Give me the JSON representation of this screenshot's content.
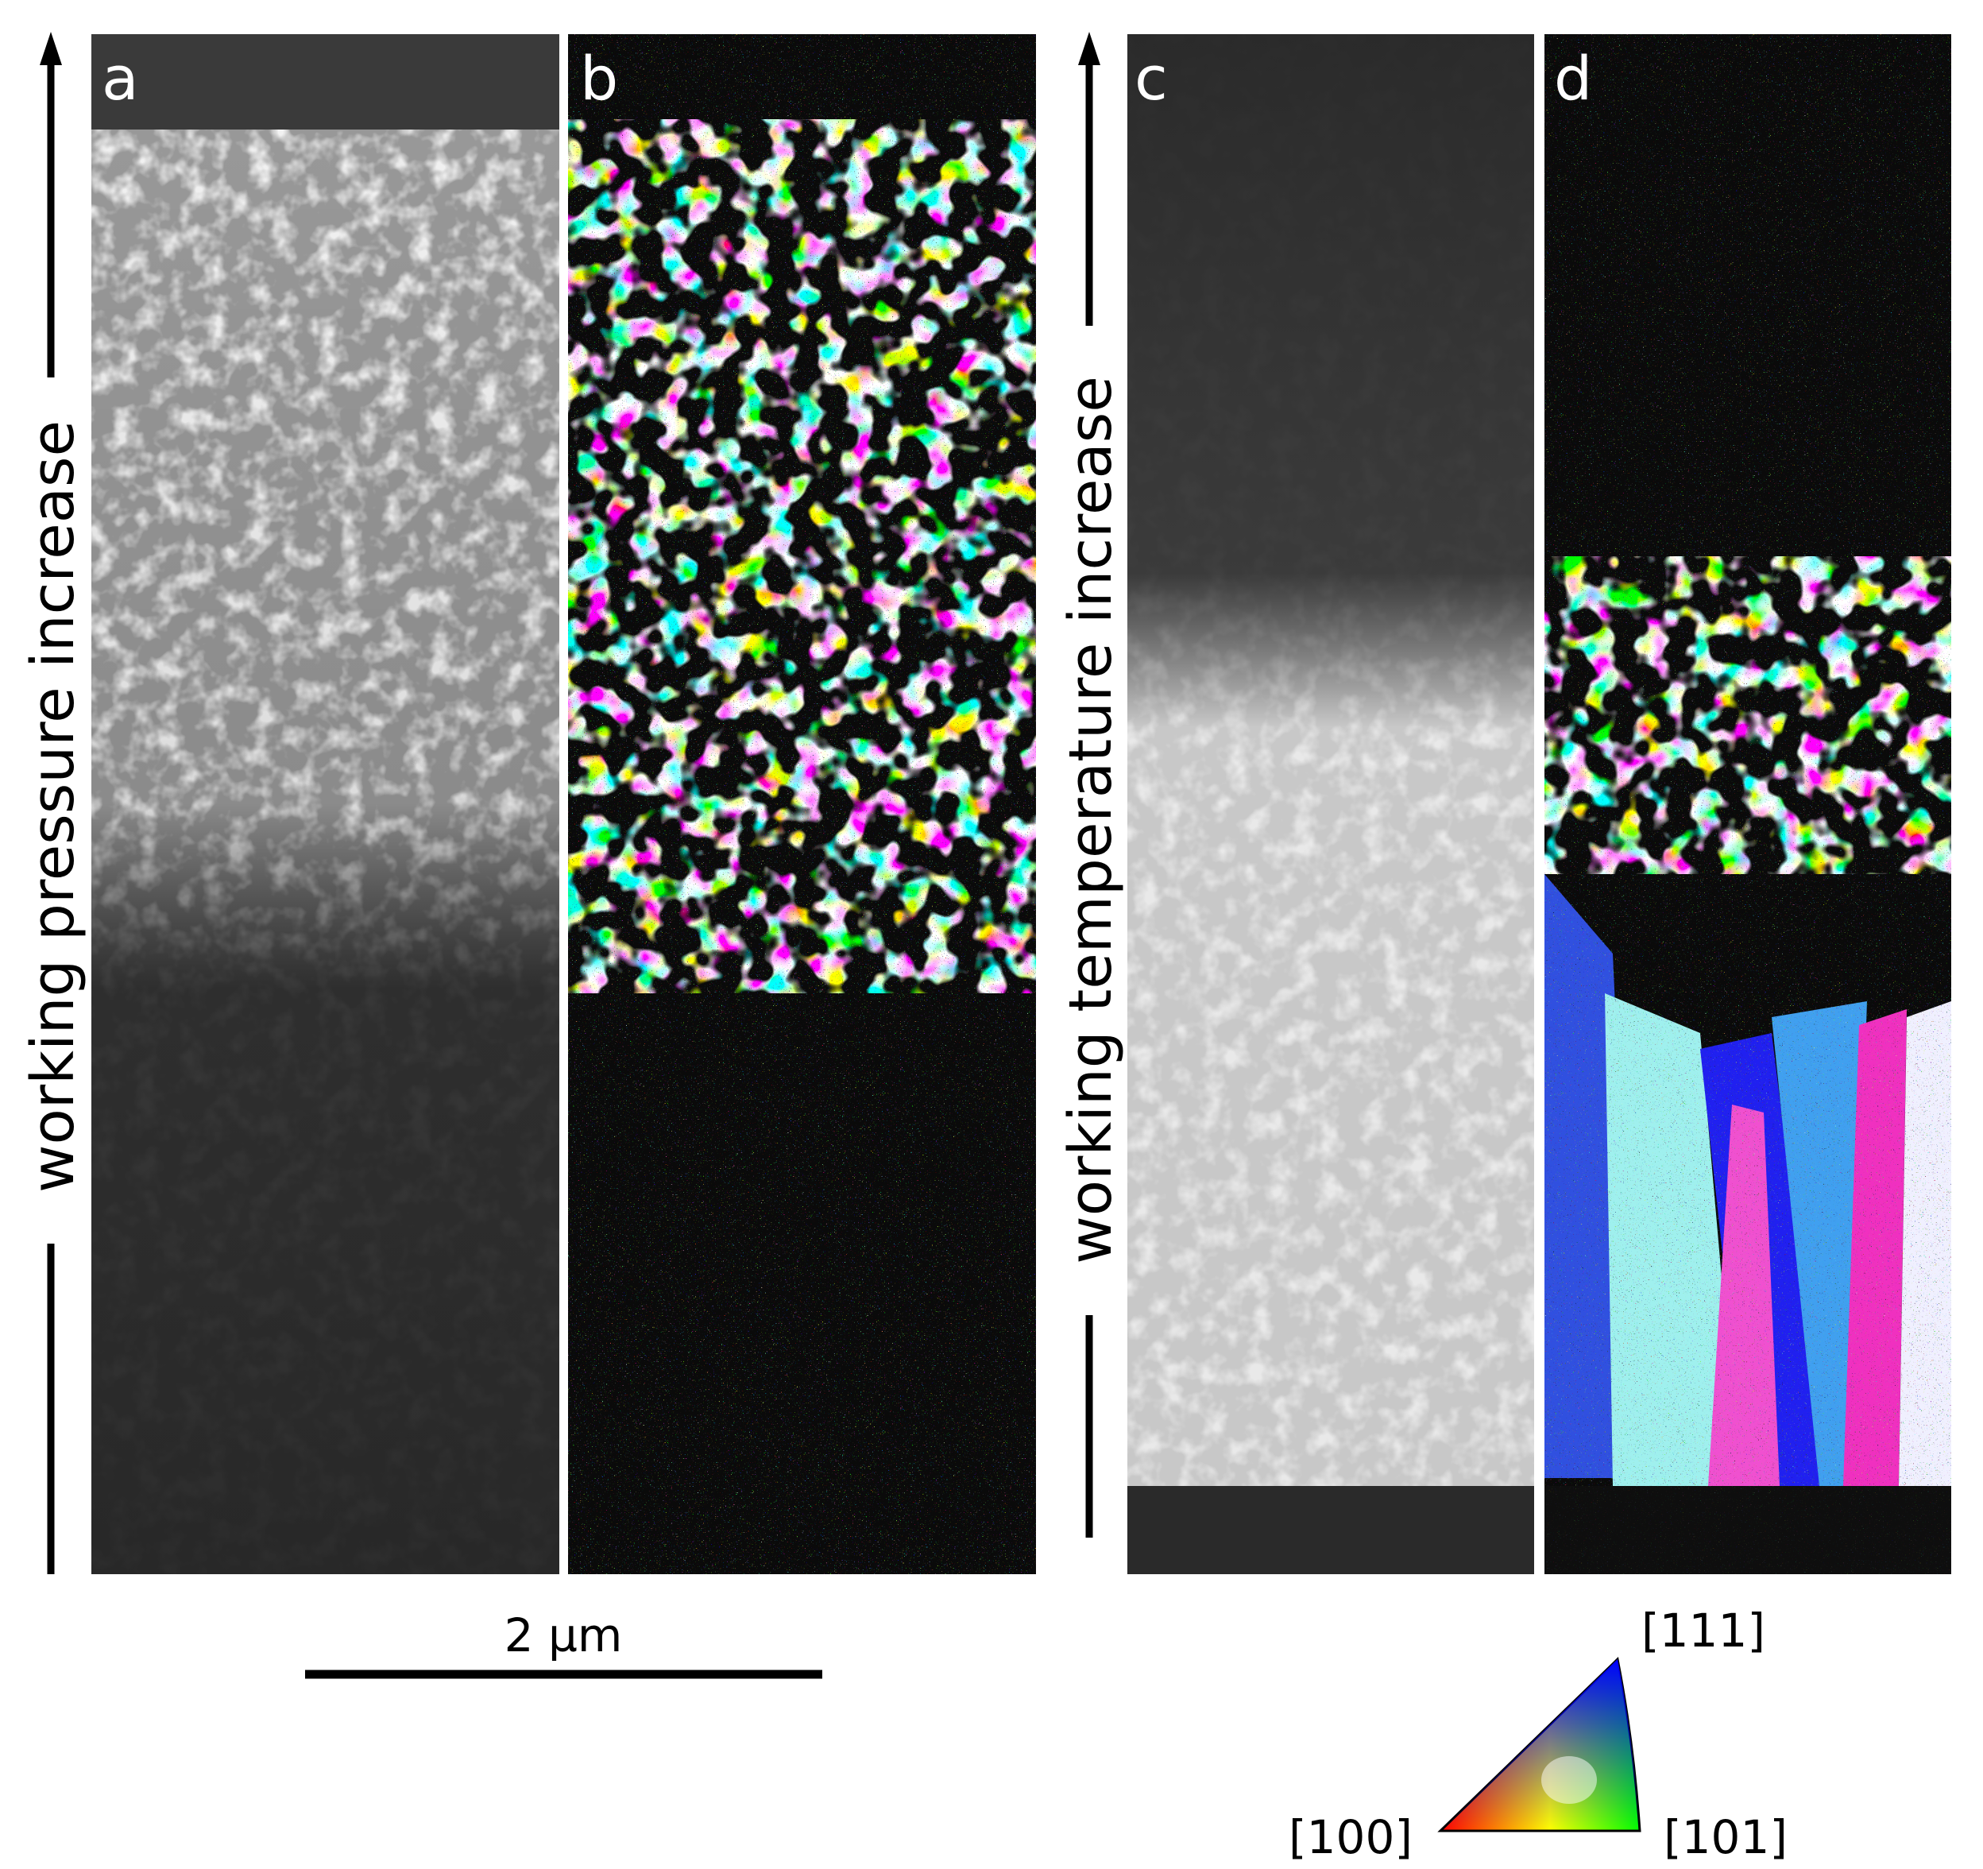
{
  "panel_labels": [
    "a",
    "b",
    "c",
    "d"
  ],
  "arrows": [
    "working pressure increase",
    "working temperature increase"
  ],
  "scale_bar": "2 µm",
  "ipf_key": {
    "top": "[111]",
    "left": "[100]",
    "right": "[101]"
  }
}
